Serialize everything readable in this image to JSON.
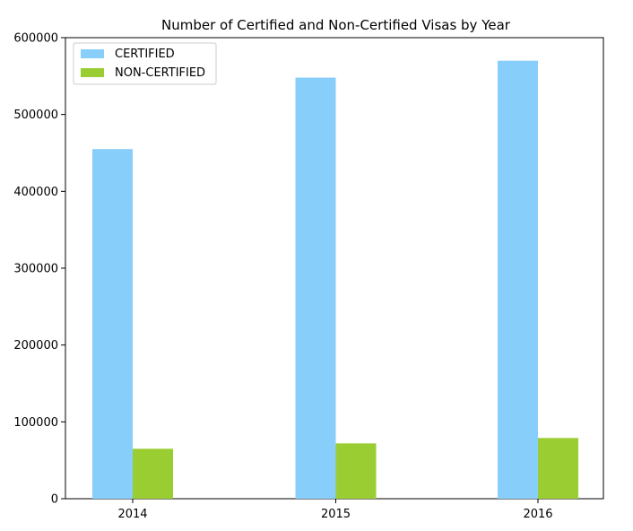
{
  "chart_data": {
    "type": "bar",
    "title": "Number of Certified and Non-Certified Visas by Year",
    "xlabel": "",
    "ylabel": "",
    "categories": [
      "2014",
      "2015",
      "2016"
    ],
    "ylim": [
      0,
      600000
    ],
    "yticks": [
      "0",
      "100000",
      "200000",
      "300000",
      "400000",
      "500000",
      "600000"
    ],
    "series": [
      {
        "name": "CERTIFIED",
        "color": "#87CEFA",
        "values": [
          455000,
          548000,
          570000
        ]
      },
      {
        "name": "NON-CERTIFIED",
        "color": "#9ACD32",
        "values": [
          65000,
          72000,
          79000
        ]
      }
    ],
    "legend": "top-left",
    "grid": false
  }
}
